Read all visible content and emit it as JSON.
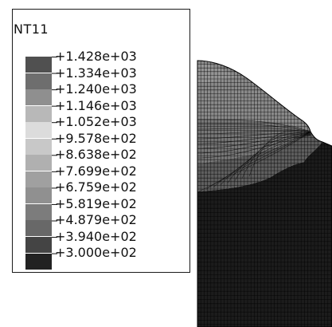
{
  "legend": {
    "title": "NT11",
    "labels": [
      "+1.428e+03",
      "+1.334e+03",
      "+1.240e+03",
      "+1.146e+03",
      "+1.052e+03",
      "+9.578e+02",
      "+8.638e+02",
      "+7.699e+02",
      "+6.759e+02",
      "+5.819e+02",
      "+4.879e+02",
      "+3.940e+02",
      "+3.000e+02"
    ],
    "colors": [
      "#505050",
      "#6e6e6e",
      "#8f8f8f",
      "#b8b8b8",
      "#dcdcdc",
      "#c8c8c8",
      "#b0b0b0",
      "#a0a0a0",
      "#909090",
      "#7c7c7c",
      "#686868",
      "#444444",
      "#222222"
    ]
  },
  "mesh_colors": {
    "bead_top": "#8a8a8a",
    "bead_mid": "#777777",
    "bead_lower": "#5e5e5e",
    "base_plate": "#1c1c1c",
    "grid_lines": "#000000",
    "bead_highlight": "#9c9c9c"
  }
}
